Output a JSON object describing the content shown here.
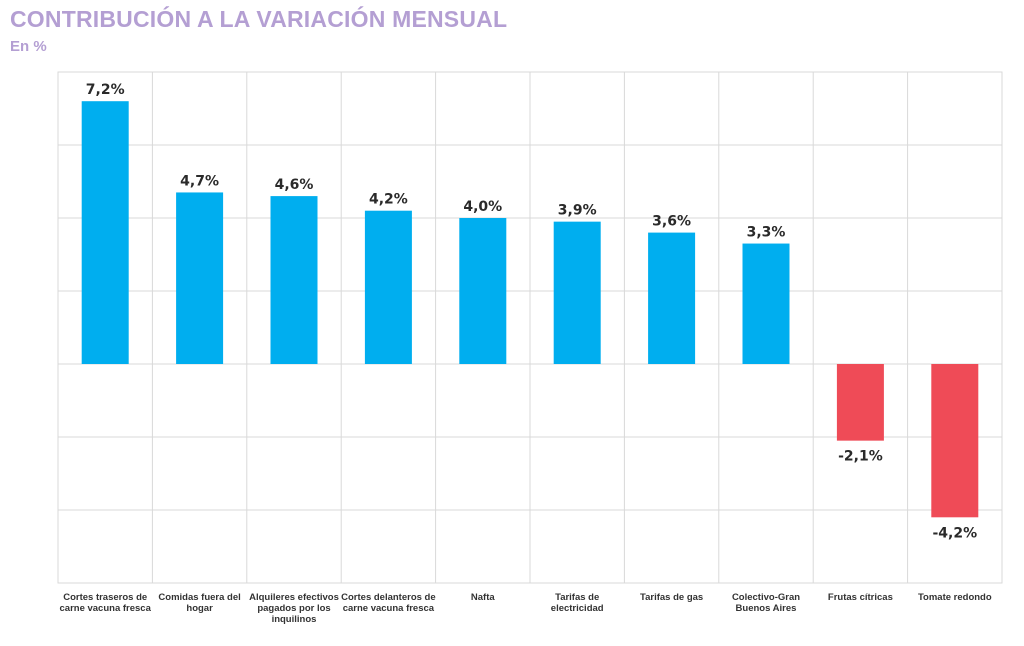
{
  "header": {
    "title": "CONTRIBUCIÓN A LA VARIACIÓN MENSUAL",
    "subtitle": "En %"
  },
  "colors": {
    "positive": "#00aeef",
    "negative": "#ef4b57",
    "title": "#b49fd3",
    "grid": "#d9d9d9"
  },
  "chart_data": {
    "type": "bar",
    "title": "CONTRIBUCIÓN A LA VARIACIÓN MENSUAL",
    "subtitle": "En %",
    "xlabel": "",
    "ylabel": "",
    "grid": true,
    "ylim": [
      -6,
      8
    ],
    "categories": [
      [
        "Cortes traseros de",
        "carne vacuna fresca"
      ],
      [
        "Comidas fuera del",
        "hogar"
      ],
      [
        "Alquileres efectivos",
        "pagados por los",
        "inquilinos"
      ],
      [
        "Cortes delanteros de",
        "carne vacuna fresca"
      ],
      [
        "Nafta"
      ],
      [
        "Tarifas de",
        "electricidad"
      ],
      [
        "Tarifas de gas"
      ],
      [
        "Colectivo-Gran",
        "Buenos Aires"
      ],
      [
        "Frutas cítricas"
      ],
      [
        "Tomate redondo"
      ]
    ],
    "values": [
      7.2,
      4.7,
      4.6,
      4.2,
      4.0,
      3.9,
      3.6,
      3.3,
      -2.1,
      -4.2
    ],
    "labels": [
      "7,2%",
      "4,7%",
      "4,6%",
      "4,2%",
      "4,0%",
      "3,9%",
      "3,6%",
      "3,3%",
      "-2,1%",
      "-4,2%"
    ]
  }
}
